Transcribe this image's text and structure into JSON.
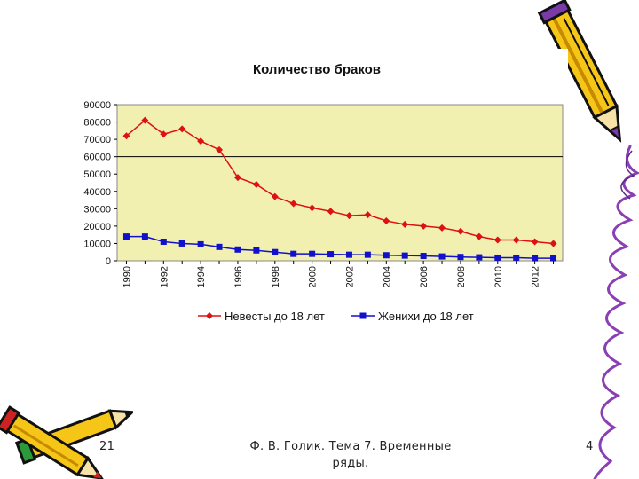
{
  "slide": {
    "number": "21",
    "caption": "Ф. В. Голик. Тема 7. Временные ряды.",
    "page": "4"
  },
  "colors": {
    "plot_background": "#f2f0b0",
    "brides_series": "#dd1111",
    "grooms_series": "#1111cc",
    "pencil_body": "#f5c518",
    "pencil_outline": "#111111",
    "squiggle": "#8a3fb5"
  },
  "decorations": [
    "pencil-icon-top-right",
    "pencils-icon-bottom-left",
    "purple-squiggle-right"
  ],
  "chart_data": {
    "type": "line",
    "title": "Количество браков",
    "xlabel": "",
    "ylabel": "",
    "ylim": [
      0,
      90000
    ],
    "yticks": [
      0,
      10000,
      20000,
      30000,
      40000,
      50000,
      60000,
      70000,
      80000,
      90000
    ],
    "xtick_labels": [
      "1990",
      "1992",
      "1994",
      "1996",
      "1998",
      "2000",
      "2002",
      "2004",
      "2006",
      "2008",
      "2010",
      "2012"
    ],
    "x": [
      1990,
      1991,
      1992,
      1993,
      1994,
      1995,
      1996,
      1997,
      1998,
      1999,
      2000,
      2001,
      2002,
      2003,
      2004,
      2005,
      2006,
      2007,
      2008,
      2009,
      2010,
      2011,
      2012,
      2013
    ],
    "reference_line": 60000,
    "grid": false,
    "legend_position": "bottom",
    "series": [
      {
        "name": "Невесты до 18 лет",
        "marker": "diamond",
        "values": [
          72000,
          81000,
          73000,
          76000,
          69000,
          64000,
          48000,
          44000,
          37000,
          33000,
          30500,
          28500,
          26000,
          26500,
          23000,
          21000,
          20000,
          19000,
          17000,
          14000,
          12000,
          12000,
          11000,
          10000
        ]
      },
      {
        "name": "Женихи до 18 лет",
        "marker": "square",
        "values": [
          14000,
          14000,
          11000,
          10000,
          9500,
          8000,
          6500,
          6000,
          5000,
          4000,
          4000,
          3800,
          3500,
          3500,
          3200,
          3000,
          2800,
          2500,
          2200,
          2000,
          1800,
          1800,
          1500,
          1500
        ]
      }
    ]
  }
}
